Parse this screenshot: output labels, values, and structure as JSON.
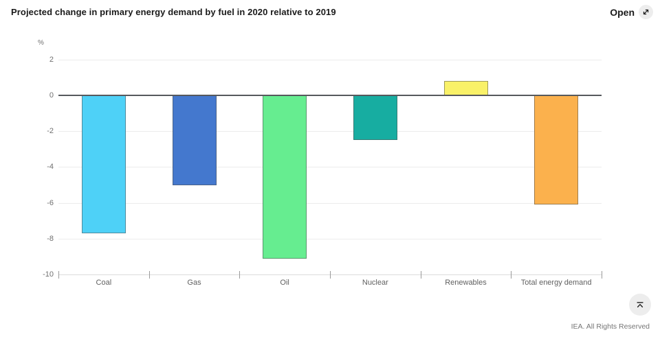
{
  "header": {
    "open_label": "Open",
    "open_icon": "expand-diagonal-icon"
  },
  "chart_data": {
    "type": "bar",
    "title": "Projected change in primary energy demand by fuel in 2020 relative to 2019",
    "unit": "%",
    "categories": [
      "Coal",
      "Gas",
      "Oil",
      "Nuclear",
      "Renewables",
      "Total energy demand"
    ],
    "values": [
      -7.7,
      -5.0,
      -9.1,
      -2.5,
      0.8,
      -6.1
    ],
    "colors": [
      "#4ed1f7",
      "#4478ce",
      "#66ed90",
      "#17ada1",
      "#f9f168",
      "#fbb14d"
    ],
    "yticks": [
      2,
      0,
      -2,
      -4,
      -6,
      -8,
      -10
    ],
    "ylim": [
      -10,
      2
    ],
    "xlabel": "",
    "ylabel": "%",
    "grid": true,
    "legend": false,
    "zero_line_color": "#56585c"
  },
  "footer": {
    "copyright": "IEA. All Rights Reserved",
    "scroll_top_icon": "scroll-to-top-icon"
  }
}
